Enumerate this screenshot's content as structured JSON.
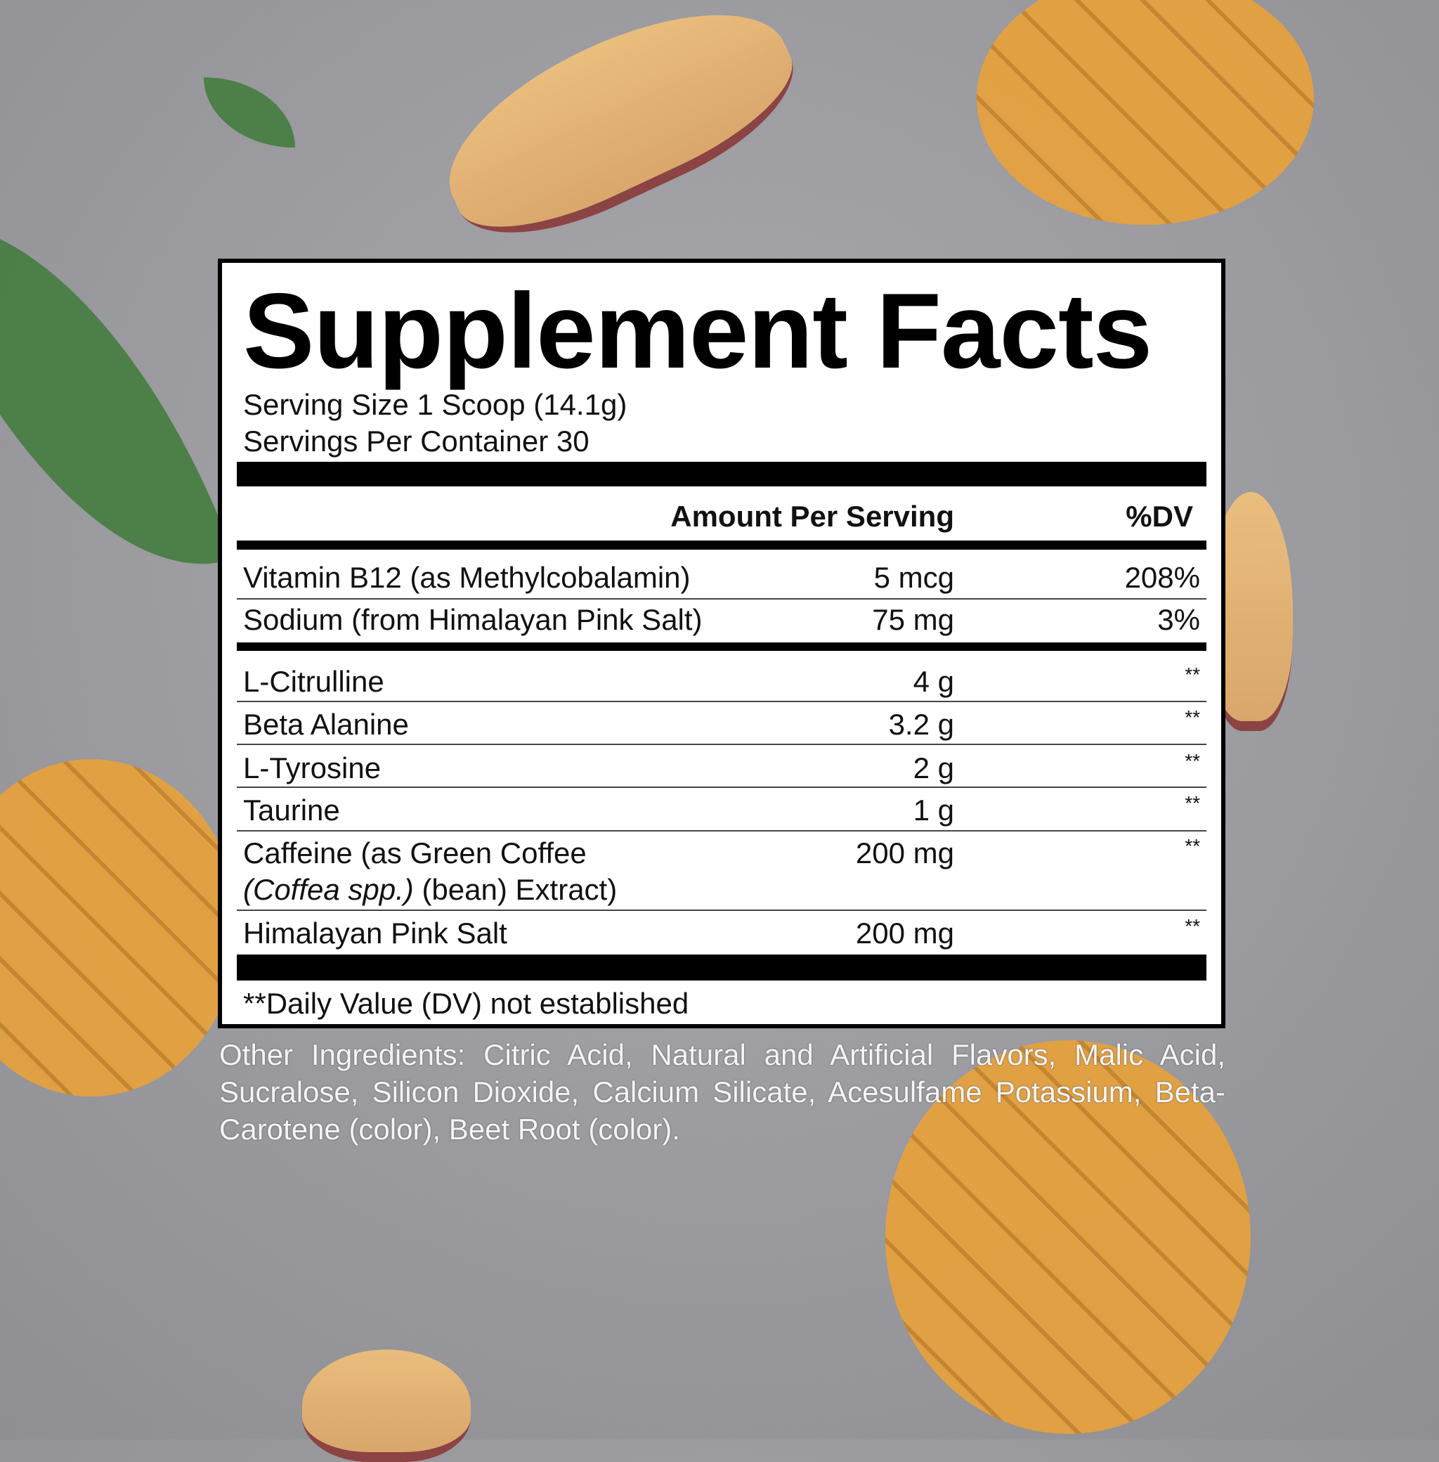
{
  "title": "Supplement Facts",
  "serving_size": "Serving Size 1 Scoop (14.1g)",
  "servings_per_container": "Servings Per Container 30",
  "header": {
    "amount": "Amount Per Serving",
    "dv": "%DV"
  },
  "rows": [
    {
      "name": "Vitamin B12 (as Methylcobalamin)",
      "amount": "5 mcg",
      "dv": "208%"
    },
    {
      "name": "Sodium (from Himalayan Pink Salt)",
      "amount": "75 mg",
      "dv": "3%"
    },
    {
      "name": "L-Citrulline",
      "amount": "4 g",
      "dv": "**"
    },
    {
      "name": "Beta Alanine",
      "amount": "3.2 g",
      "dv": "**"
    },
    {
      "name": "L-Tyrosine",
      "amount": "2 g",
      "dv": "**"
    },
    {
      "name": "Taurine",
      "amount": "1 g",
      "dv": "**"
    },
    {
      "name": "Caffeine (as Green Coffee",
      "name2_italic": "(Coffea spp.)",
      "name2_rest": " (bean) Extract)",
      "amount": "200 mg",
      "dv": "**"
    },
    {
      "name": "Himalayan Pink Salt",
      "amount": "200 mg",
      "dv": "**"
    }
  ],
  "footnote": "**Daily Value (DV) not established",
  "other_ingredients": "Other Ingredients: Citric Acid, Natural and Artificial Flavors, Malic Acid, Sucralose, Silicon Dioxide, Calcium Silicate, Acesulfame Potassium, Beta-Carotene (color), Beet Root (color)."
}
